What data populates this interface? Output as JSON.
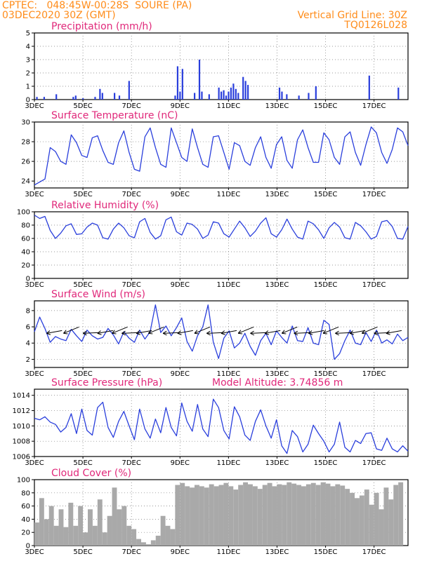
{
  "header": {
    "line1": "CPTEC:   048:45W-00:28S  SOURE (PA)",
    "line2": "03DEC2020 30Z (GMT)",
    "grid_note": "Vertical Grid Line: 30Z",
    "code": "TQ0126L028"
  },
  "colors": {
    "header": "#ff8c1a",
    "title": "#e0287a",
    "series": "#2a3fdc",
    "cloud": "#a9a9a9"
  },
  "x_axis": {
    "ticks": [
      "3DEC",
      "5DEC",
      "7DEC",
      "9DEC",
      "11DEC",
      "13DEC",
      "15DEC",
      "17DEC"
    ]
  },
  "chart_data": [
    {
      "type": "bar",
      "title": "Precipitation (mm/h)",
      "ylim": [
        0,
        5
      ],
      "yticks": [
        "0",
        "1",
        "2",
        "3",
        "4",
        "5"
      ],
      "grid": "dotted",
      "series": [
        {
          "values_by_day": [
            [
              3.1,
              0.2
            ],
            [
              3.4,
              0.2
            ],
            [
              3.9,
              0.4
            ],
            [
              4.6,
              0.2
            ],
            [
              4.7,
              0.3
            ],
            [
              5.0,
              0.1
            ],
            [
              5.5,
              0.2
            ],
            [
              5.7,
              0.8
            ],
            [
              5.8,
              0.5
            ],
            [
              6.3,
              0.5
            ],
            [
              6.5,
              0.3
            ],
            [
              6.9,
              1.4
            ],
            [
              8.8,
              0.3
            ],
            [
              8.9,
              2.5
            ],
            [
              9.0,
              0.6
            ],
            [
              9.1,
              2.3
            ],
            [
              9.6,
              0.5
            ],
            [
              9.8,
              3.0
            ],
            [
              9.9,
              0.6
            ],
            [
              10.2,
              0.4
            ],
            [
              10.6,
              0.9
            ],
            [
              10.7,
              0.6
            ],
            [
              10.8,
              0.7
            ],
            [
              10.9,
              0.3
            ],
            [
              11.0,
              0.6
            ],
            [
              11.1,
              0.9
            ],
            [
              11.2,
              1.2
            ],
            [
              11.3,
              0.8
            ],
            [
              11.4,
              0.5
            ],
            [
              11.6,
              1.7
            ],
            [
              11.7,
              1.4
            ],
            [
              11.8,
              1.1
            ],
            [
              13.1,
              0.9
            ],
            [
              13.2,
              0.6
            ],
            [
              13.4,
              0.4
            ],
            [
              13.9,
              0.3
            ],
            [
              14.3,
              0.5
            ],
            [
              14.6,
              1.0
            ],
            [
              16.8,
              1.8
            ],
            [
              18.0,
              0.9
            ]
          ]
        }
      ]
    },
    {
      "type": "line",
      "title": "Surface Temperature (nC)",
      "ylim": [
        23.3,
        30
      ],
      "yticks": [
        "24",
        "26",
        "28",
        "30"
      ],
      "series": [
        {
          "values": [
            23.6,
            23.9,
            24.2,
            27.4,
            27.0,
            26.0,
            25.7,
            28.7,
            27.9,
            26.6,
            26.4,
            28.4,
            28.6,
            27.1,
            25.9,
            25.7,
            27.9,
            29.1,
            26.9,
            25.2,
            25.0,
            28.5,
            29.4,
            27.4,
            25.7,
            25.4,
            29.4,
            27.9,
            26.4,
            26.0,
            29.3,
            27.4,
            25.7,
            25.4,
            28.5,
            28.6,
            26.9,
            25.2,
            27.9,
            27.6,
            26.0,
            25.6,
            27.4,
            28.5,
            26.4,
            25.3,
            27.7,
            28.5,
            26.1,
            25.3,
            28.2,
            29.2,
            27.4,
            25.9,
            25.9,
            28.9,
            28.2,
            26.4,
            25.7,
            28.5,
            29.0,
            26.9,
            25.6,
            27.7,
            29.5,
            28.9,
            26.9,
            25.8,
            27.2,
            29.4,
            29.0,
            27.6
          ]
        }
      ]
    },
    {
      "type": "line",
      "title": "Relative Humidity (%)",
      "ylim": [
        0,
        100
      ],
      "yticks": [
        "0",
        "20",
        "40",
        "60",
        "80",
        "100"
      ],
      "series": [
        {
          "values": [
            95,
            90,
            93,
            72,
            60,
            68,
            79,
            82,
            66,
            67,
            77,
            83,
            80,
            61,
            59,
            74,
            83,
            76,
            64,
            61,
            85,
            90,
            69,
            59,
            64,
            88,
            92,
            70,
            65,
            83,
            81,
            74,
            60,
            65,
            85,
            83,
            67,
            62,
            74,
            86,
            76,
            63,
            71,
            83,
            91,
            67,
            62,
            73,
            89,
            74,
            62,
            59,
            86,
            82,
            73,
            60,
            76,
            84,
            77,
            61,
            59,
            84,
            79,
            70,
            59,
            63,
            85,
            87,
            78,
            60,
            59,
            78
          ]
        }
      ]
    },
    {
      "type": "line",
      "title": "Surface Wind (m/s)",
      "ylim": [
        1,
        9.2
      ],
      "yticks": [
        "2",
        "4",
        "6",
        "8"
      ],
      "series": [
        {
          "values": [
            5.4,
            7.2,
            5.8,
            4.1,
            4.8,
            4.5,
            4.3,
            5.7,
            4.9,
            4.2,
            5.6,
            4.9,
            4.5,
            4.7,
            5.8,
            5.0,
            3.9,
            5.4,
            4.6,
            4.1,
            5.6,
            4.5,
            5.4,
            8.7,
            5.3,
            6.1,
            4.9,
            5.9,
            7.1,
            4.2,
            3.0,
            4.9,
            6.0,
            8.7,
            4.1,
            2.1,
            4.6,
            5.5,
            3.4,
            4.0,
            5.2,
            3.6,
            2.5,
            4.3,
            5.2,
            3.8,
            5.5,
            4.7,
            4.0,
            6.1,
            4.3,
            4.2,
            5.9,
            4.0,
            3.8,
            6.8,
            6.3,
            2.0,
            2.7,
            4.3,
            5.6,
            4.0,
            3.8,
            5.3,
            4.2,
            5.6,
            4.0,
            4.4,
            3.9,
            5.1,
            4.3,
            4.7
          ]
        }
      ],
      "wind_vectors": "arrows from the east-northeast, about 5 m/s"
    },
    {
      "type": "line",
      "title": "Surface Pressure (hPa)",
      "annotation": "Model Altitude: 3.74856 m",
      "ylim": [
        1006,
        1014.8
      ],
      "yticks": [
        "1006",
        "1008",
        "1010",
        "1012",
        "1014"
      ],
      "series": [
        {
          "values": [
            1011.0,
            1010.8,
            1011.2,
            1010.5,
            1010.2,
            1009.2,
            1009.8,
            1011.6,
            1009.0,
            1012.2,
            1009.4,
            1008.8,
            1012.4,
            1013.1,
            1009.8,
            1008.5,
            1010.6,
            1011.9,
            1010.0,
            1008.2,
            1012.2,
            1009.6,
            1008.4,
            1010.9,
            1009.1,
            1012.4,
            1009.8,
            1008.7,
            1013.0,
            1010.6,
            1009.3,
            1012.8,
            1009.6,
            1008.6,
            1013.5,
            1012.4,
            1009.4,
            1008.3,
            1012.5,
            1011.2,
            1008.8,
            1008.1,
            1010.6,
            1012.1,
            1010.0,
            1008.4,
            1010.8,
            1007.4,
            1006.4,
            1009.4,
            1008.6,
            1006.6,
            1007.6,
            1010.1,
            1009.0,
            1008.0,
            1006.6,
            1007.6,
            1010.5,
            1007.2,
            1006.6,
            1008.1,
            1007.7,
            1009.0,
            1009.1,
            1007.0,
            1006.8,
            1008.4,
            1007.0,
            1006.6,
            1007.4,
            1006.7
          ]
        }
      ]
    },
    {
      "type": "bar",
      "title": "Cloud Cover (%)",
      "ylim": [
        0,
        100
      ],
      "yticks": [
        "0",
        "20",
        "40",
        "60",
        "80",
        "100"
      ],
      "series": [
        {
          "values_by_day": [
            [
              3.0,
              35
            ],
            [
              3.2,
              72
            ],
            [
              3.4,
              40
            ],
            [
              3.6,
              60
            ],
            [
              3.8,
              30
            ],
            [
              4.0,
              55
            ],
            [
              4.2,
              28
            ],
            [
              4.4,
              65
            ],
            [
              4.6,
              30
            ],
            [
              4.8,
              60
            ],
            [
              5.0,
              20
            ],
            [
              5.2,
              55
            ],
            [
              5.4,
              30
            ],
            [
              5.6,
              70
            ],
            [
              5.8,
              20
            ],
            [
              6.0,
              45
            ],
            [
              6.2,
              88
            ],
            [
              6.4,
              55
            ],
            [
              6.6,
              60
            ],
            [
              6.8,
              30
            ],
            [
              7.0,
              25
            ],
            [
              7.2,
              10
            ],
            [
              7.4,
              5
            ],
            [
              7.6,
              2
            ],
            [
              7.8,
              8
            ],
            [
              8.0,
              15
            ],
            [
              8.2,
              45
            ],
            [
              8.4,
              30
            ],
            [
              8.6,
              25
            ],
            [
              8.8,
              92
            ],
            [
              9.0,
              95
            ],
            [
              9.2,
              90
            ],
            [
              9.4,
              88
            ],
            [
              9.6,
              92
            ],
            [
              9.8,
              90
            ],
            [
              10.0,
              88
            ],
            [
              10.2,
              93
            ],
            [
              10.4,
              90
            ],
            [
              10.6,
              92
            ],
            [
              10.8,
              95
            ],
            [
              11.0,
              90
            ],
            [
              11.2,
              85
            ],
            [
              11.4,
              92
            ],
            [
              11.6,
              96
            ],
            [
              11.8,
              93
            ],
            [
              12.0,
              90
            ],
            [
              12.2,
              86
            ],
            [
              12.4,
              92
            ],
            [
              12.6,
              95
            ],
            [
              12.8,
              90
            ],
            [
              13.0,
              93
            ],
            [
              13.2,
              92
            ],
            [
              13.4,
              96
            ],
            [
              13.6,
              94
            ],
            [
              13.8,
              92
            ],
            [
              14.0,
              90
            ],
            [
              14.2,
              93
            ],
            [
              14.4,
              95
            ],
            [
              14.6,
              92
            ],
            [
              14.8,
              96
            ],
            [
              15.0,
              94
            ],
            [
              15.2,
              90
            ],
            [
              15.4,
              93
            ],
            [
              15.6,
              91
            ],
            [
              15.8,
              86
            ],
            [
              16.0,
              80
            ],
            [
              16.2,
              72
            ],
            [
              16.4,
              76
            ],
            [
              16.6,
              85
            ],
            [
              16.8,
              62
            ],
            [
              17.0,
              80
            ],
            [
              17.2,
              55
            ],
            [
              17.4,
              88
            ],
            [
              17.6,
              70
            ],
            [
              17.8,
              92
            ],
            [
              18.0,
              96
            ]
          ]
        }
      ]
    }
  ]
}
